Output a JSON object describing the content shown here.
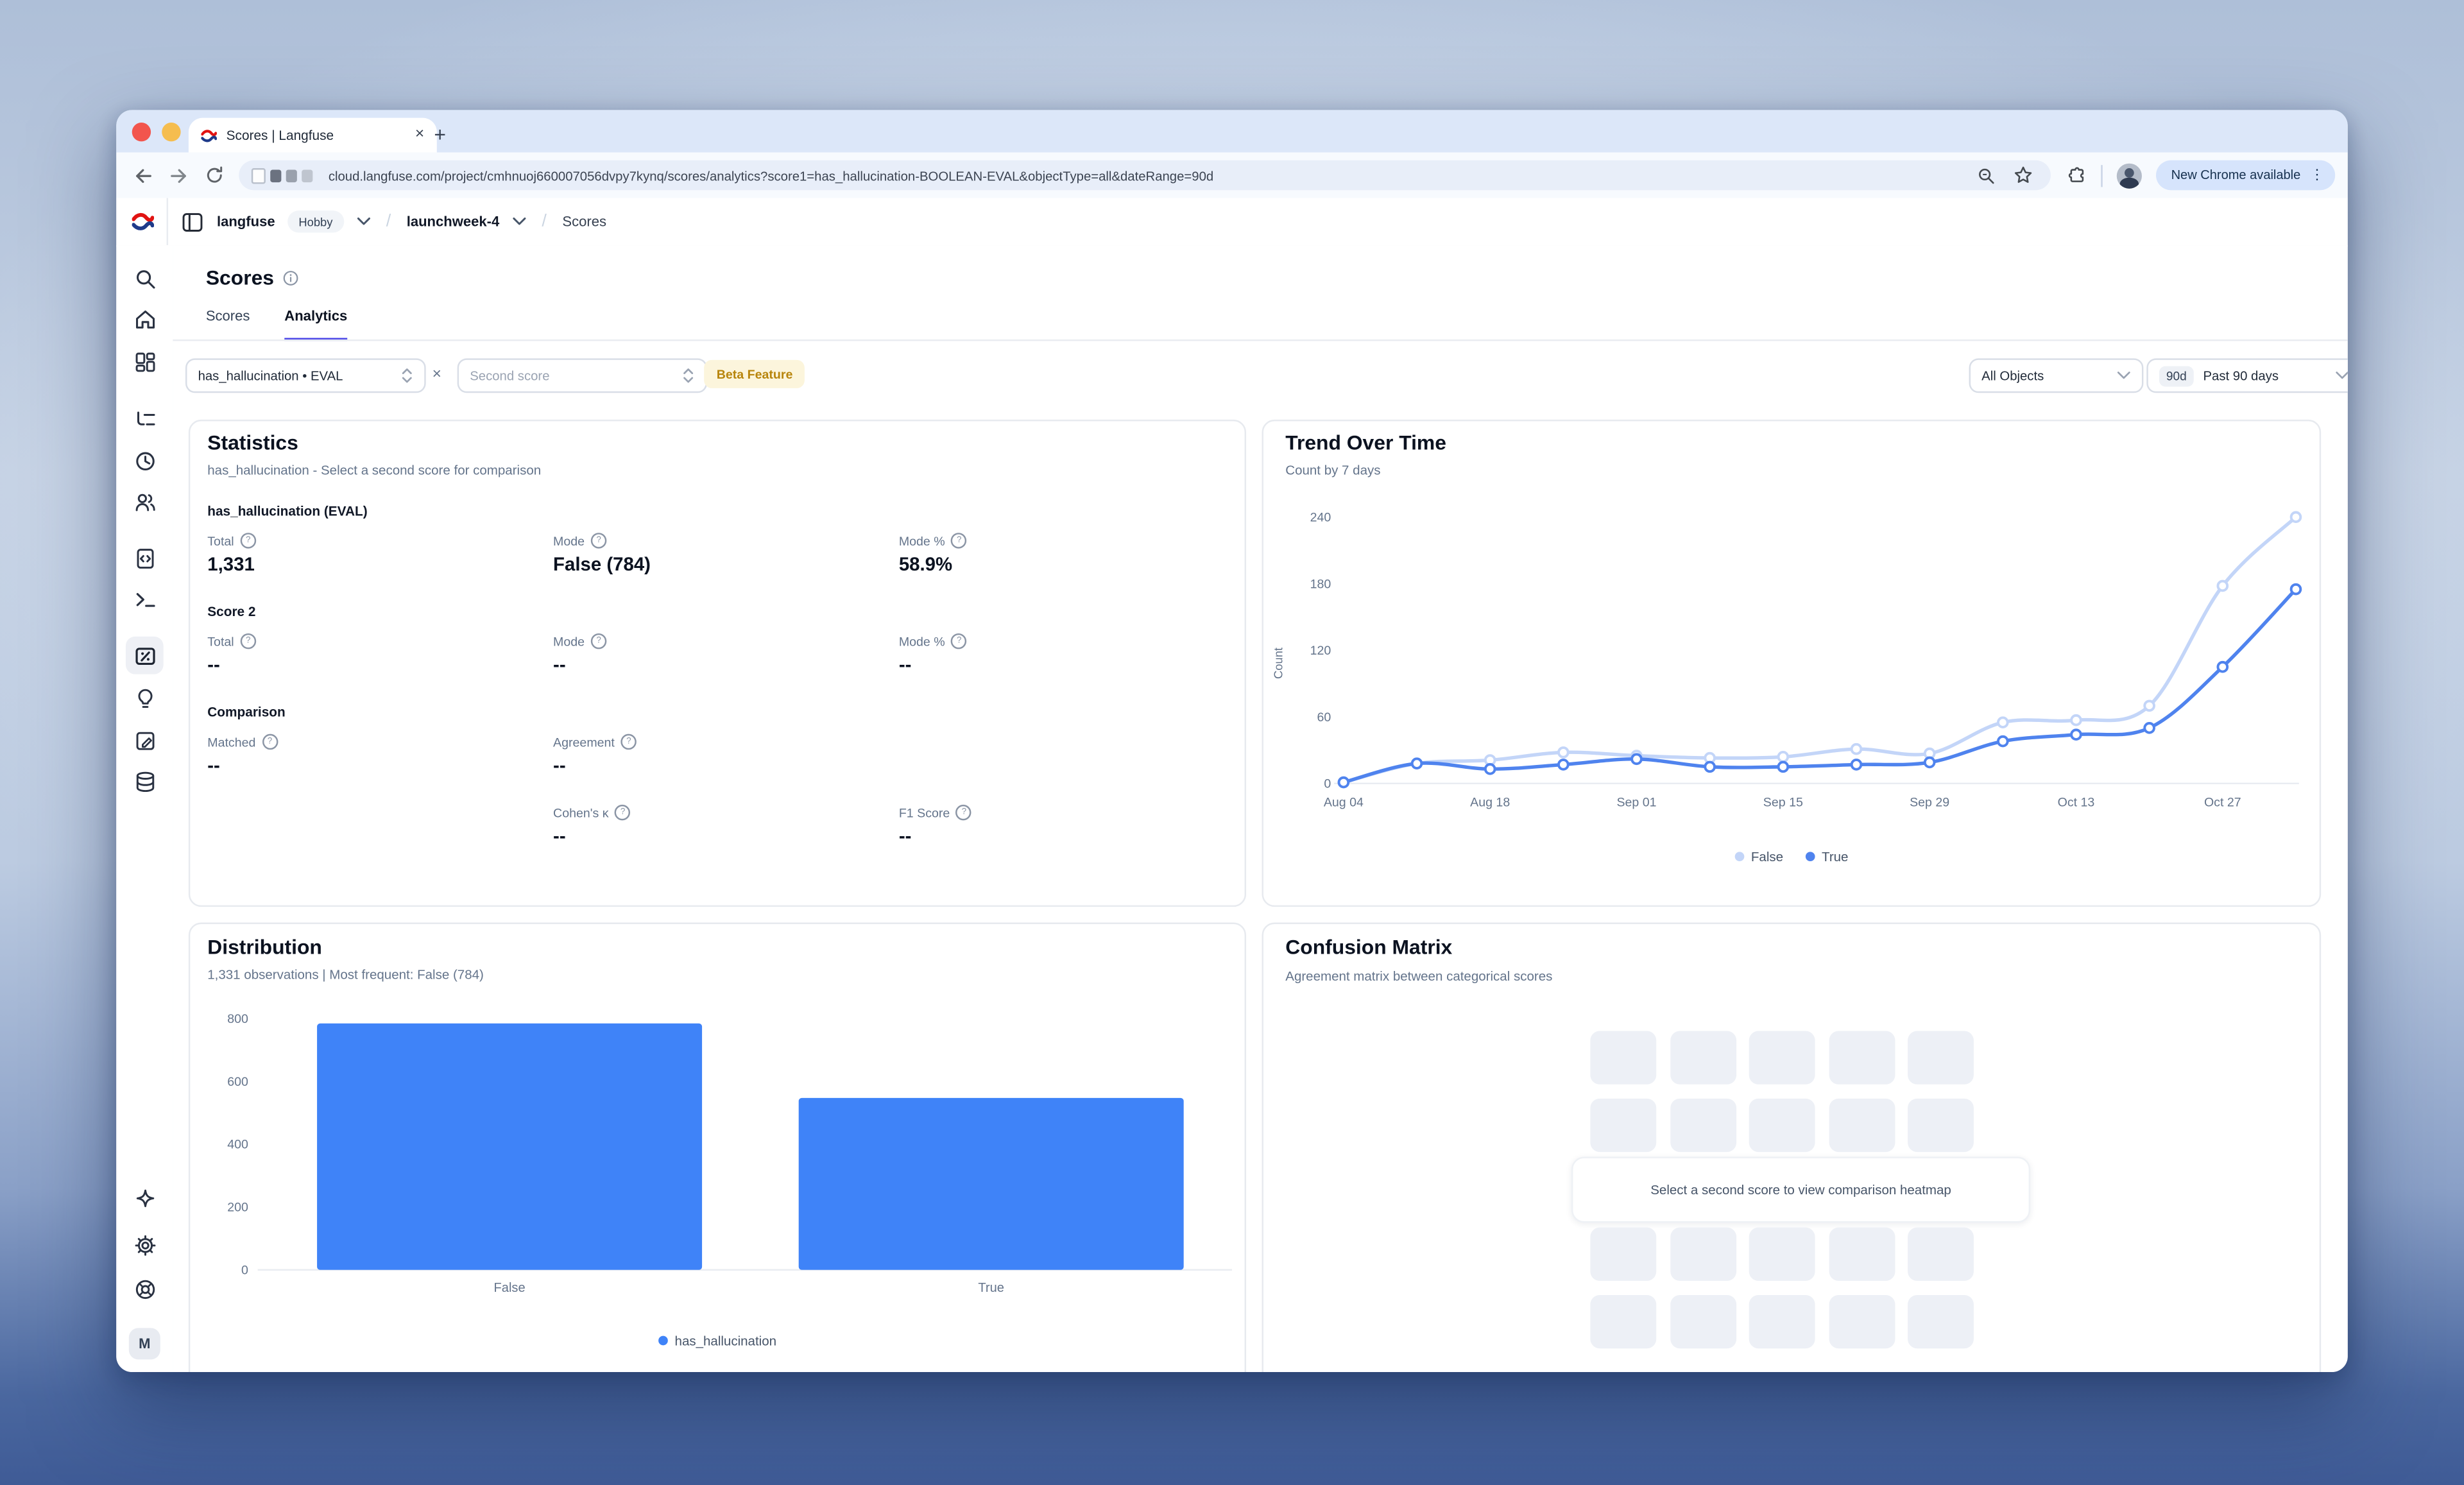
{
  "browser": {
    "tab_title": "Scores | Langfuse",
    "close_tab_glyph": "×",
    "new_tab_glyph": "+",
    "url": "cloud.langfuse.com/project/cmhnuoj660007056dvpy7kynq/scores/analytics?score1=has_hallucination-BOOLEAN-EVAL&objectType=all&dateRange=90d",
    "update_pill": "New Chrome available",
    "menu_glyph": "⋮"
  },
  "app_header": {
    "org_name": "langfuse",
    "plan_badge": "Hobby",
    "separator": "/",
    "project_name": "launchweek-4",
    "current_page": "Scores"
  },
  "sidebar_avatar": "M",
  "page": {
    "title": "Scores",
    "tabs": [
      {
        "label": "Scores"
      },
      {
        "label": "Analytics"
      }
    ]
  },
  "filters": {
    "score1_value": "has_hallucination • EVAL",
    "clear_glyph": "×",
    "score2_placeholder": "Second score",
    "beta_badge": "Beta Feature",
    "objects_value": "All Objects",
    "date_badge": "90d",
    "date_value": "Past 90 days"
  },
  "statistics": {
    "title": "Statistics",
    "subtitle": "has_hallucination - Select a second score for comparison",
    "score1_heading": "has_hallucination (EVAL)",
    "score2_heading": "Score 2",
    "comparison_heading": "Comparison",
    "score1_metrics": [
      {
        "label": "Total",
        "value": "1,331"
      },
      {
        "label": "Mode",
        "value": "False (784)"
      },
      {
        "label": "Mode %",
        "value": "58.9%"
      }
    ],
    "score2_metrics": [
      {
        "label": "Total",
        "value": "--"
      },
      {
        "label": "Mode",
        "value": "--"
      },
      {
        "label": "Mode %",
        "value": "--"
      }
    ],
    "comparison_metrics_row1": [
      {
        "label": "Matched",
        "value": "--"
      },
      {
        "label": "Agreement",
        "value": "--"
      }
    ],
    "comparison_metrics_row2": [
      {
        "label": "Cohen's κ",
        "value": "--"
      },
      {
        "label": "F1 Score",
        "value": "--"
      }
    ]
  },
  "trend_card": {
    "title": "Trend Over Time",
    "subtitle": "Count by 7 days"
  },
  "distribution_card": {
    "title": "Distribution",
    "subtitle": "1,331 observations | Most frequent: False (784)"
  },
  "confusion_card": {
    "title": "Confusion Matrix",
    "subtitle": "Agreement matrix between categorical scores",
    "placeholder_message": "Select a second score to view comparison heatmap"
  },
  "chart_data": [
    {
      "type": "line",
      "title": "Trend Over Time",
      "subtitle": "Count by 7 days",
      "ylabel": "Count",
      "x": [
        "Aug 04",
        "Aug 11",
        "Aug 18",
        "Aug 25",
        "Sep 01",
        "Sep 08",
        "Sep 15",
        "Sep 22",
        "Sep 29",
        "Oct 06",
        "Oct 13",
        "Oct 20",
        "Oct 27",
        "Nov 03"
      ],
      "labeled_tick_indices": [
        0,
        2,
        4,
        6,
        8,
        10,
        12
      ],
      "y_ticks": [
        0,
        60,
        120,
        180,
        240
      ],
      "ylim": [
        0,
        250
      ],
      "grid": false,
      "legend_position": "bottom",
      "series": [
        {
          "name": "False",
          "color": "#c3d5f8",
          "values": [
            1,
            18,
            21,
            28,
            25,
            23,
            24,
            31,
            27,
            55,
            57,
            70,
            178,
            240
          ]
        },
        {
          "name": "True",
          "color": "#4f83ee",
          "values": [
            1,
            18,
            13,
            17,
            22,
            15,
            15,
            17,
            19,
            38,
            44,
            50,
            105,
            175
          ]
        }
      ]
    },
    {
      "type": "bar",
      "categories": [
        "False",
        "True"
      ],
      "values": [
        784,
        547
      ],
      "series_name": "has_hallucination",
      "y_ticks": [
        0,
        200,
        400,
        600,
        800
      ],
      "ylim": [
        0,
        800
      ],
      "bar_color": "#3f83f8",
      "legend_position": "bottom"
    }
  ]
}
